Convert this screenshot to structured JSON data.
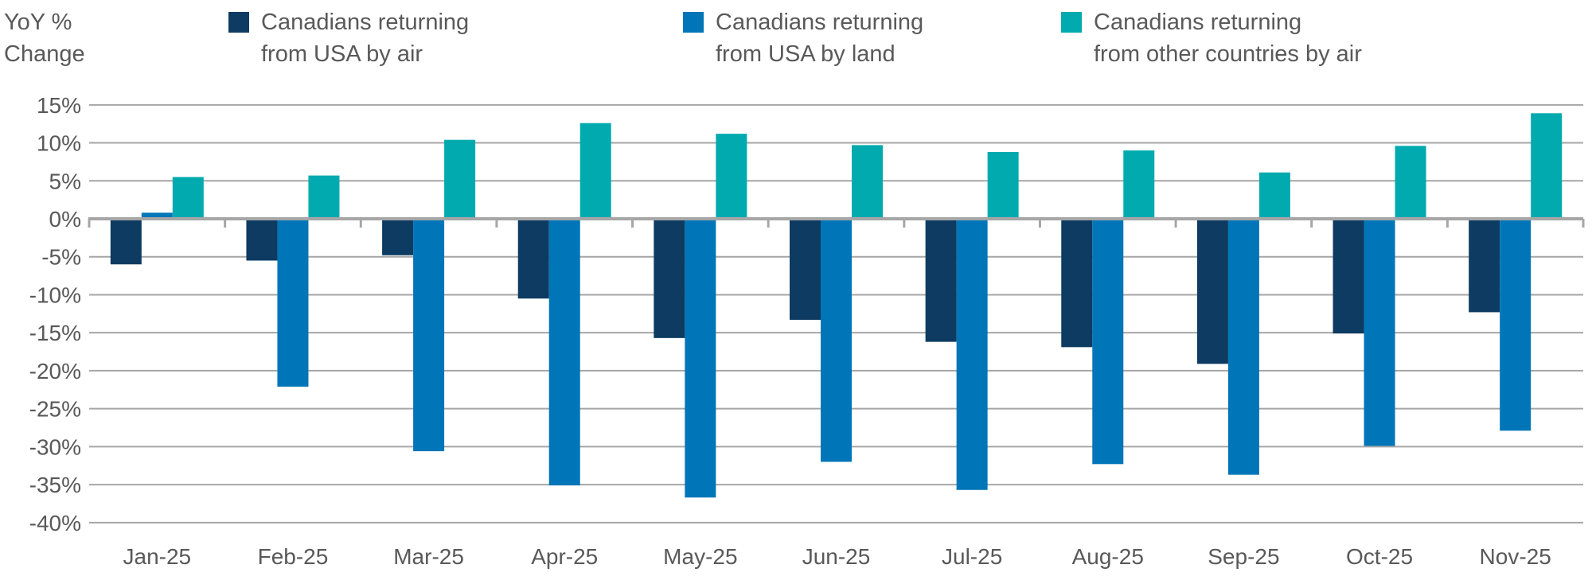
{
  "chart_data": {
    "type": "bar",
    "y_axis_title_lines": [
      "YoY %",
      "Change"
    ],
    "categories": [
      "Jan-25",
      "Feb-25",
      "Mar-25",
      "Apr-25",
      "May-25",
      "Jun-25",
      "Jul-25",
      "Aug-25",
      "Sep-25",
      "Oct-25",
      "Nov-25"
    ],
    "series": [
      {
        "key": "usa-air",
        "name": "Canadians returning from USA by air",
        "legend_lines": [
          "Canadians returning",
          "from USA by air"
        ],
        "color": "#0D3B61",
        "values": [
          -6.0,
          -5.5,
          -4.8,
          -10.5,
          -15.7,
          -13.3,
          -16.2,
          -16.9,
          -19.1,
          -15.1,
          -12.3
        ]
      },
      {
        "key": "usa-land",
        "name": "Canadians returning from USA by land",
        "legend_lines": [
          "Canadians returning",
          "from USA by land"
        ],
        "color": "#0075B8",
        "values": [
          0.8,
          -22.1,
          -30.6,
          -35.1,
          -36.7,
          -32.0,
          -35.7,
          -32.3,
          -33.7,
          -29.9,
          -27.9
        ]
      },
      {
        "key": "other-air",
        "name": "Canadians returning from other countries by air",
        "legend_lines": [
          "Canadians returning",
          "from other countries by air"
        ],
        "color": "#00AAAF",
        "values": [
          5.5,
          5.7,
          10.4,
          12.6,
          11.2,
          9.7,
          8.8,
          9.0,
          6.1,
          9.6,
          13.9
        ]
      }
    ],
    "ylim": [
      -40,
      15
    ],
    "y_tick_step": 5,
    "y_tick_suffix": "%",
    "grid": true,
    "legend_position": "top",
    "axis_colors": {
      "grid": "#A6A6A6",
      "zero_line": "#A6A6A6",
      "text": "#595959"
    }
  }
}
